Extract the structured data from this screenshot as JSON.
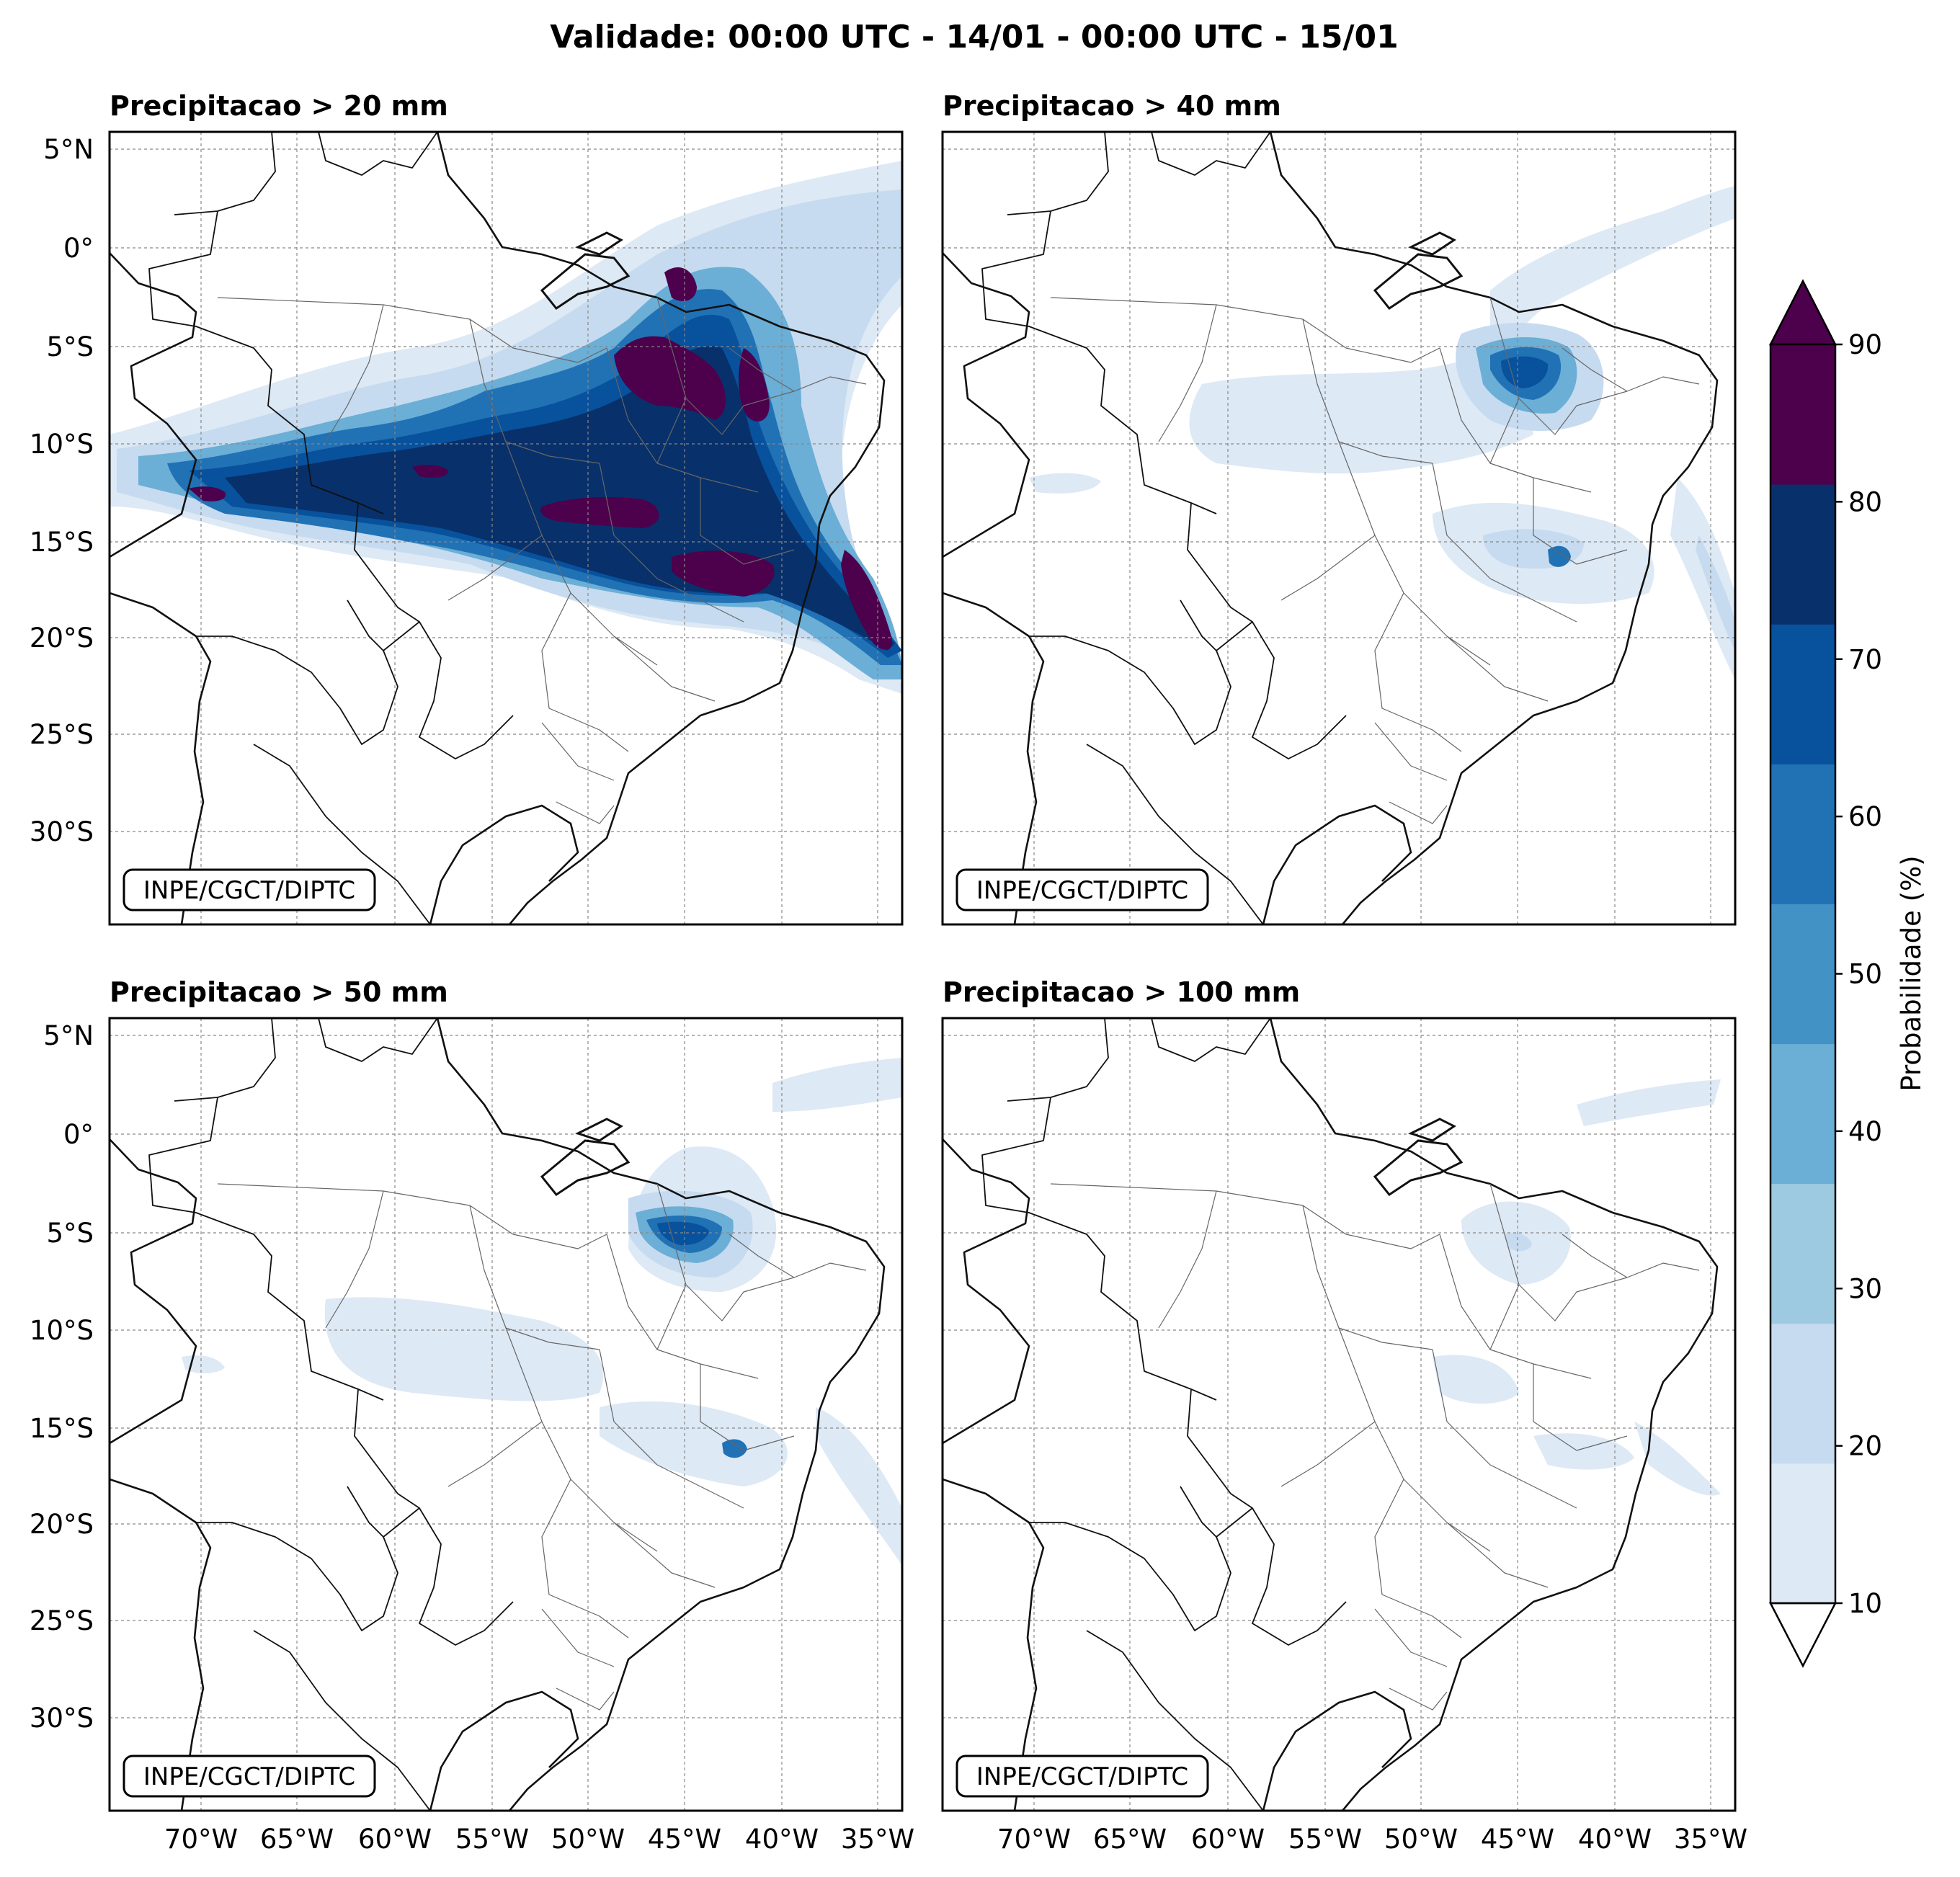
{
  "title": "Validade: 00:00 UTC - 14/01 - 00:00 UTC - 15/01",
  "credit": "INPE/CGCT/DIPTC",
  "panels": [
    {
      "title": "Precipitacao > 20 mm"
    },
    {
      "title": "Precipitacao > 40 mm"
    },
    {
      "title": "Precipitacao > 50 mm"
    },
    {
      "title": "Precipitacao > 100 mm"
    }
  ],
  "lat_labels": [
    "5°N",
    "0°",
    "5°S",
    "10°S",
    "15°S",
    "20°S",
    "25°S",
    "30°S"
  ],
  "lon_labels": [
    "70°W",
    "65°W",
    "60°W",
    "55°W",
    "50°W",
    "45°W",
    "40°W",
    "35°W"
  ],
  "colorbar": {
    "label": "Probabilidade (%)",
    "ticks": [
      "10",
      "20",
      "30",
      "40",
      "50",
      "60",
      "70",
      "80",
      "90"
    ],
    "colors": [
      "#dde9f5",
      "#c6dbef",
      "#9ecae1",
      "#6baed6",
      "#4292c6",
      "#2171b5",
      "#08519c",
      "#08306b",
      "#4d004b"
    ]
  }
}
